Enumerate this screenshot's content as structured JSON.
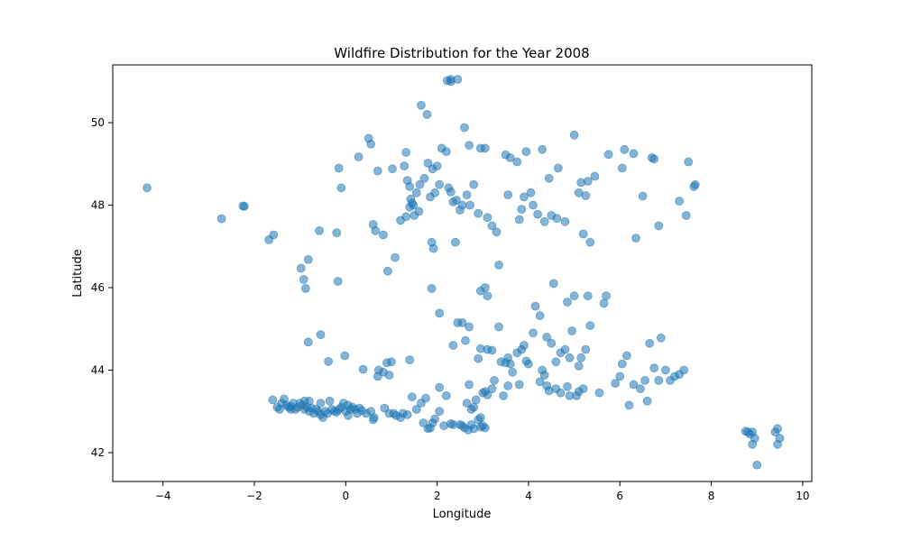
{
  "chart_data": {
    "type": "scatter",
    "title": "Wildfire Distribution for the Year 2008",
    "xlabel": "Longitude",
    "ylabel": "Latitude",
    "xlim": [
      -5.1,
      10.2
    ],
    "ylim": [
      41.3,
      51.4
    ],
    "xticks": [
      -4,
      -2,
      0,
      2,
      4,
      6,
      8,
      10
    ],
    "xtick_labels": [
      "−4",
      "−2",
      "0",
      "2",
      "4",
      "6",
      "8",
      "10"
    ],
    "yticks": [
      42,
      44,
      46,
      48,
      50
    ],
    "ytick_labels": [
      "42",
      "44",
      "46",
      "48",
      "50"
    ],
    "grid": false,
    "marker_color": "#1f77b4",
    "marker_alpha": 0.55,
    "series": [
      {
        "points": [
          [
            -4.35,
            48.42
          ],
          [
            -2.72,
            47.67
          ],
          [
            -2.25,
            47.98
          ],
          [
            -2.22,
            47.97
          ],
          [
            -1.68,
            47.16
          ],
          [
            -1.58,
            47.28
          ],
          [
            -0.98,
            46.47
          ],
          [
            -0.92,
            46.2
          ],
          [
            -0.88,
            45.98
          ],
          [
            -0.82,
            46.68
          ],
          [
            -0.58,
            47.38
          ],
          [
            -0.2,
            47.33
          ],
          [
            -0.17,
            46.15
          ],
          [
            -0.15,
            48.9
          ],
          [
            -0.1,
            48.42
          ],
          [
            -0.82,
            44.68
          ],
          [
            -0.55,
            44.86
          ],
          [
            -0.38,
            44.21
          ],
          [
            -0.02,
            44.35
          ],
          [
            0.38,
            44.02
          ],
          [
            0.5,
            49.62
          ],
          [
            0.55,
            49.48
          ],
          [
            0.6,
            47.53
          ],
          [
            0.65,
            47.38
          ],
          [
            0.28,
            49.17
          ],
          [
            0.7,
            48.83
          ],
          [
            0.82,
            47.28
          ],
          [
            0.92,
            46.4
          ],
          [
            1.02,
            48.88
          ],
          [
            1.08,
            46.73
          ],
          [
            1.2,
            47.63
          ],
          [
            1.28,
            48.95
          ],
          [
            1.32,
            49.28
          ],
          [
            1.35,
            48.6
          ],
          [
            1.4,
            48.45
          ],
          [
            1.4,
            47.95
          ],
          [
            1.42,
            48.15
          ],
          [
            1.45,
            48.05
          ],
          [
            1.5,
            47.75
          ],
          [
            1.55,
            48.3
          ],
          [
            1.48,
            48.0
          ],
          [
            1.32,
            47.72
          ],
          [
            1.6,
            47.85
          ],
          [
            1.62,
            48.5
          ],
          [
            1.65,
            50.42
          ],
          [
            1.72,
            48.65
          ],
          [
            1.78,
            50.2
          ],
          [
            1.8,
            49.02
          ],
          [
            1.85,
            48.2
          ],
          [
            1.9,
            48.88
          ],
          [
            1.95,
            48.3
          ],
          [
            1.88,
            47.1
          ],
          [
            1.92,
            46.95
          ],
          [
            2.0,
            48.95
          ],
          [
            2.05,
            48.5
          ],
          [
            2.1,
            49.38
          ],
          [
            2.2,
            49.3
          ],
          [
            2.25,
            48.42
          ],
          [
            2.3,
            48.32
          ],
          [
            2.35,
            48.08
          ],
          [
            2.4,
            47.1
          ],
          [
            2.42,
            48.12
          ],
          [
            2.5,
            47.88
          ],
          [
            2.55,
            48.0
          ],
          [
            2.6,
            49.88
          ],
          [
            2.65,
            48.25
          ],
          [
            2.7,
            49.45
          ],
          [
            2.72,
            48.0
          ],
          [
            2.8,
            48.5
          ],
          [
            2.9,
            47.8
          ],
          [
            2.95,
            49.38
          ],
          [
            3.05,
            49.38
          ],
          [
            3.1,
            47.7
          ],
          [
            3.2,
            47.5
          ],
          [
            3.3,
            47.35
          ],
          [
            3.35,
            46.55
          ],
          [
            3.5,
            49.22
          ],
          [
            3.55,
            48.25
          ],
          [
            3.6,
            49.15
          ],
          [
            3.75,
            49.05
          ],
          [
            3.8,
            47.65
          ],
          [
            3.85,
            47.9
          ],
          [
            3.9,
            48.2
          ],
          [
            3.95,
            49.3
          ],
          [
            4.05,
            48.3
          ],
          [
            4.1,
            48.0
          ],
          [
            4.2,
            47.78
          ],
          [
            4.3,
            49.35
          ],
          [
            4.35,
            47.6
          ],
          [
            4.45,
            48.65
          ],
          [
            4.5,
            47.75
          ],
          [
            4.62,
            47.68
          ],
          [
            4.65,
            48.9
          ],
          [
            4.8,
            47.6
          ],
          [
            5.0,
            49.7
          ],
          [
            5.1,
            48.3
          ],
          [
            5.15,
            48.55
          ],
          [
            5.2,
            47.3
          ],
          [
            5.25,
            48.23
          ],
          [
            5.3,
            48.58
          ],
          [
            5.35,
            47.1
          ],
          [
            5.45,
            48.7
          ],
          [
            5.75,
            49.23
          ],
          [
            6.05,
            48.9
          ],
          [
            6.1,
            49.35
          ],
          [
            6.3,
            49.25
          ],
          [
            6.35,
            47.2
          ],
          [
            6.5,
            48.22
          ],
          [
            6.7,
            49.15
          ],
          [
            6.75,
            49.12
          ],
          [
            6.85,
            47.5
          ],
          [
            7.3,
            48.1
          ],
          [
            7.45,
            47.75
          ],
          [
            7.5,
            49.05
          ],
          [
            7.65,
            48.5
          ],
          [
            7.62,
            48.45
          ],
          [
            2.22,
            51.02
          ],
          [
            2.3,
            51.05
          ],
          [
            2.45,
            51.05
          ],
          [
            2.3,
            51.0
          ],
          [
            1.88,
            45.98
          ],
          [
            2.05,
            45.38
          ],
          [
            2.35,
            44.6
          ],
          [
            2.45,
            45.15
          ],
          [
            2.55,
            45.15
          ],
          [
            2.62,
            44.72
          ],
          [
            2.7,
            45.05
          ],
          [
            2.95,
            45.92
          ],
          [
            3.05,
            46.0
          ],
          [
            3.1,
            45.8
          ],
          [
            3.35,
            45.05
          ],
          [
            2.9,
            44.28
          ],
          [
            2.95,
            44.52
          ],
          [
            3.1,
            44.5
          ],
          [
            3.2,
            44.48
          ],
          [
            3.4,
            44.2
          ],
          [
            3.5,
            44.18
          ],
          [
            3.55,
            44.3
          ],
          [
            3.6,
            44.15
          ],
          [
            3.65,
            43.95
          ],
          [
            3.75,
            44.42
          ],
          [
            3.85,
            44.5
          ],
          [
            3.9,
            44.6
          ],
          [
            3.95,
            44.22
          ],
          [
            4.0,
            44.15
          ],
          [
            4.1,
            44.9
          ],
          [
            4.15,
            45.55
          ],
          [
            4.25,
            45.32
          ],
          [
            4.3,
            44.0
          ],
          [
            4.35,
            43.88
          ],
          [
            4.4,
            44.8
          ],
          [
            4.5,
            44.65
          ],
          [
            4.55,
            46.1
          ],
          [
            4.6,
            44.2
          ],
          [
            4.7,
            44.42
          ],
          [
            4.8,
            44.5
          ],
          [
            4.85,
            45.65
          ],
          [
            4.9,
            44.3
          ],
          [
            4.95,
            44.95
          ],
          [
            5.0,
            45.8
          ],
          [
            5.1,
            44.1
          ],
          [
            5.15,
            44.3
          ],
          [
            5.2,
            43.55
          ],
          [
            5.25,
            44.5
          ],
          [
            5.3,
            45.8
          ],
          [
            5.35,
            45.08
          ],
          [
            5.55,
            43.45
          ],
          [
            5.65,
            45.62
          ],
          [
            5.7,
            45.8
          ],
          [
            5.9,
            43.68
          ],
          [
            6.0,
            43.85
          ],
          [
            6.05,
            44.15
          ],
          [
            6.15,
            44.35
          ],
          [
            6.2,
            43.15
          ],
          [
            6.3,
            43.65
          ],
          [
            6.45,
            43.55
          ],
          [
            6.55,
            43.75
          ],
          [
            6.6,
            43.25
          ],
          [
            6.65,
            44.65
          ],
          [
            6.75,
            44.05
          ],
          [
            6.85,
            43.75
          ],
          [
            6.9,
            44.78
          ],
          [
            7.0,
            44.0
          ],
          [
            7.1,
            43.75
          ],
          [
            7.2,
            43.85
          ],
          [
            7.3,
            43.9
          ],
          [
            7.4,
            44.0
          ],
          [
            0.85,
            43.08
          ],
          [
            0.95,
            42.95
          ],
          [
            1.05,
            42.95
          ],
          [
            1.1,
            42.9
          ],
          [
            1.2,
            42.85
          ],
          [
            1.25,
            42.95
          ],
          [
            1.35,
            42.92
          ],
          [
            1.4,
            44.25
          ],
          [
            1.45,
            43.35
          ],
          [
            1.55,
            43.05
          ],
          [
            1.65,
            43.2
          ],
          [
            1.7,
            42.72
          ],
          [
            1.75,
            43.32
          ],
          [
            1.85,
            42.6
          ],
          [
            2.05,
            43.58
          ],
          [
            2.15,
            42.65
          ],
          [
            2.2,
            43.38
          ],
          [
            2.35,
            42.68
          ],
          [
            2.5,
            42.68
          ],
          [
            2.6,
            42.6
          ],
          [
            2.65,
            43.2
          ],
          [
            2.7,
            43.65
          ],
          [
            2.75,
            43.05
          ],
          [
            2.8,
            43.1
          ],
          [
            2.85,
            43.28
          ],
          [
            2.9,
            42.8
          ],
          [
            3.0,
            43.45
          ],
          [
            3.05,
            43.48
          ],
          [
            3.1,
            43.4
          ],
          [
            3.2,
            43.55
          ],
          [
            3.25,
            43.75
          ],
          [
            3.45,
            43.38
          ],
          [
            3.55,
            43.62
          ],
          [
            3.8,
            43.65
          ],
          [
            4.25,
            43.72
          ],
          [
            4.4,
            43.62
          ],
          [
            4.45,
            43.5
          ],
          [
            4.6,
            43.55
          ],
          [
            4.7,
            43.45
          ],
          [
            4.85,
            43.6
          ],
          [
            4.9,
            43.38
          ],
          [
            5.05,
            43.38
          ],
          [
            5.1,
            43.48
          ],
          [
            0.82,
            43.95
          ],
          [
            0.9,
            44.18
          ],
          [
            0.95,
            43.88
          ],
          [
            1.0,
            44.2
          ],
          [
            0.7,
            43.85
          ],
          [
            0.72,
            44.0
          ],
          [
            0.55,
            43.0
          ],
          [
            0.62,
            42.85
          ],
          [
            0.6,
            42.8
          ],
          [
            0.45,
            42.95
          ],
          [
            0.35,
            43.02
          ],
          [
            0.2,
            43.05
          ],
          [
            -1.6,
            43.28
          ],
          [
            -1.5,
            43.1
          ],
          [
            -1.4,
            43.2
          ],
          [
            -1.35,
            43.3
          ],
          [
            -1.3,
            43.15
          ],
          [
            -1.25,
            43.1
          ],
          [
            -1.2,
            43.12
          ],
          [
            -1.15,
            43.2
          ],
          [
            -1.1,
            43.05
          ],
          [
            -1.05,
            43.1
          ],
          [
            -1.0,
            43.2
          ],
          [
            -0.95,
            43.15
          ],
          [
            -0.9,
            43.05
          ],
          [
            -0.85,
            43.1
          ],
          [
            -0.8,
            43.0
          ],
          [
            -0.75,
            43.08
          ],
          [
            -0.7,
            42.95
          ],
          [
            -0.65,
            43.05
          ],
          [
            -0.6,
            43.0
          ],
          [
            -0.55,
            42.92
          ],
          [
            -0.5,
            42.85
          ],
          [
            -0.45,
            43.0
          ],
          [
            -0.4,
            42.95
          ],
          [
            -0.3,
            43.05
          ],
          [
            -0.25,
            43.0
          ],
          [
            -0.2,
            42.98
          ],
          [
            -0.15,
            43.05
          ],
          [
            -0.1,
            43.1
          ],
          [
            -0.05,
            43.2
          ],
          [
            0.0,
            43.0
          ],
          [
            0.05,
            43.15
          ],
          [
            0.1,
            43.05
          ],
          [
            0.15,
            43.1
          ],
          [
            0.25,
            42.95
          ],
          [
            0.3,
            43.08
          ],
          [
            -0.8,
            43.25
          ],
          [
            -0.55,
            43.2
          ],
          [
            -0.9,
            43.25
          ],
          [
            -1.45,
            43.05
          ],
          [
            -1.2,
            43.05
          ],
          [
            -0.35,
            43.25
          ],
          [
            0.05,
            42.9
          ],
          [
            1.95,
            42.82
          ],
          [
            1.8,
            42.58
          ],
          [
            1.9,
            42.72
          ],
          [
            2.05,
            43.0
          ],
          [
            2.3,
            42.7
          ],
          [
            2.55,
            42.65
          ],
          [
            2.75,
            42.68
          ],
          [
            2.8,
            42.58
          ],
          [
            2.95,
            42.62
          ],
          [
            3.0,
            42.65
          ],
          [
            3.05,
            42.6
          ],
          [
            2.95,
            42.85
          ],
          [
            2.68,
            42.55
          ],
          [
            8.75,
            42.52
          ],
          [
            8.8,
            42.5
          ],
          [
            8.85,
            42.45
          ],
          [
            8.9,
            42.5
          ],
          [
            8.95,
            42.35
          ],
          [
            8.9,
            42.2
          ],
          [
            9.0,
            41.7
          ],
          [
            9.4,
            42.5
          ],
          [
            9.45,
            42.58
          ],
          [
            9.45,
            42.2
          ],
          [
            9.5,
            42.35
          ]
        ]
      }
    ]
  }
}
